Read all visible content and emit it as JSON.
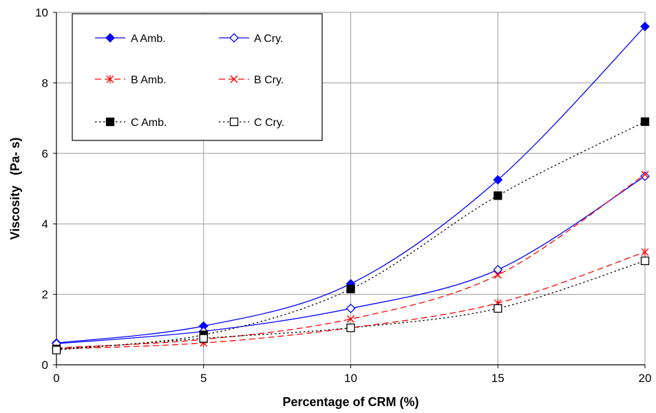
{
  "chart_data": {
    "type": "line",
    "title": "",
    "xlabel": "Percentage of CRM (%)",
    "ylabel": "Viscosity   (Pa- s)",
    "xlim": [
      0,
      20
    ],
    "ylim": [
      0,
      10
    ],
    "x_ticks": [
      0,
      5,
      10,
      15,
      20
    ],
    "y_ticks": [
      0,
      2,
      4,
      6,
      8,
      10
    ],
    "x_tick_labels": [
      "0",
      "5",
      "10",
      "15",
      "20"
    ],
    "y_tick_labels": [
      "0",
      "2",
      "4",
      "6",
      "8",
      "10"
    ],
    "grid": true,
    "legend_position": "top-left",
    "x": [
      0,
      5,
      10,
      15,
      20
    ],
    "series": [
      {
        "name": "A Amb.",
        "values": [
          0.62,
          1.1,
          2.3,
          5.25,
          9.6
        ],
        "color": "#0000ff",
        "dash": "solid",
        "marker": "diamond-filled"
      },
      {
        "name": "A Cry.",
        "values": [
          0.6,
          0.95,
          1.6,
          2.7,
          5.35
        ],
        "color": "#0000ff",
        "dash": "solid",
        "marker": "diamond-open"
      },
      {
        "name": "B Amb.",
        "values": [
          0.45,
          0.62,
          1.05,
          1.75,
          3.2
        ],
        "color": "#ff0000",
        "dash": "dashed",
        "marker": "asterisk"
      },
      {
        "name": "B Cry.",
        "values": [
          0.48,
          0.72,
          1.3,
          2.55,
          5.4
        ],
        "color": "#ff0000",
        "dash": "dashed",
        "marker": "x"
      },
      {
        "name": "C Amb.",
        "values": [
          0.45,
          0.85,
          2.15,
          4.8,
          6.9
        ],
        "color": "#000000",
        "dash": "dotted",
        "marker": "square-filled"
      },
      {
        "name": "C Cry.",
        "values": [
          0.42,
          0.75,
          1.05,
          1.6,
          2.95
        ],
        "color": "#000000",
        "dash": "dotted",
        "marker": "square-open"
      }
    ]
  }
}
